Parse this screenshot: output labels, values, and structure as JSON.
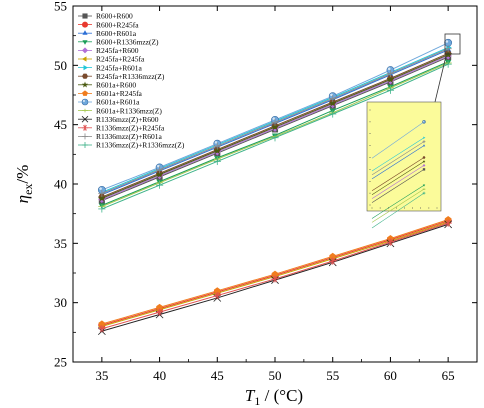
{
  "chart_data": {
    "type": "line",
    "x_label_var": "T",
    "x_label_sub": "1",
    "x_label_unit": " / (°C)",
    "y_label_var": "η",
    "y_label_sub": "ex",
    "y_label_unit": "/%",
    "xlim": [
      32.5,
      67.5
    ],
    "ylim": [
      25,
      55
    ],
    "x_ticks": [
      35,
      40,
      45,
      50,
      55,
      60,
      65
    ],
    "y_ticks": [
      25,
      30,
      35,
      40,
      45,
      50,
      55
    ],
    "x": [
      35,
      40,
      45,
      50,
      55,
      60,
      65
    ],
    "legend_position": "top-left",
    "inset_position": "right",
    "series": [
      {
        "name": "R600+R600",
        "marker": "square",
        "color": "#555555",
        "values": [
          38.6,
          40.6,
          42.6,
          44.6,
          46.6,
          48.6,
          50.7
        ]
      },
      {
        "name": "R600+R245fa",
        "marker": "circle",
        "color": "#e8392f",
        "values": [
          28.1,
          29.5,
          30.9,
          32.3,
          33.8,
          35.3,
          36.9
        ]
      },
      {
        "name": "R600+R601a",
        "marker": "triangle-up",
        "color": "#2c6fd6",
        "values": [
          39.1,
          41.1,
          43.1,
          45.1,
          47.1,
          49.2,
          51.3
        ]
      },
      {
        "name": "R600+R1336mzz(Z)",
        "marker": "triangle-down",
        "color": "#1b9e5a",
        "values": [
          38.2,
          40.2,
          42.2,
          44.1,
          46.2,
          48.2,
          50.3
        ]
      },
      {
        "name": "R245fa+R600",
        "marker": "diamond",
        "color": "#b06fd8",
        "values": [
          38.7,
          40.7,
          42.7,
          44.7,
          46.7,
          48.7,
          50.8
        ]
      },
      {
        "name": "R245fa+R245fa",
        "marker": "triangle-left",
        "color": "#c8a200",
        "values": [
          28.0,
          29.4,
          30.8,
          32.2,
          33.7,
          35.2,
          36.8
        ]
      },
      {
        "name": "R245fa+R601a",
        "marker": "triangle-right",
        "color": "#22c7d8",
        "values": [
          39.3,
          41.3,
          43.3,
          45.3,
          47.3,
          49.4,
          51.5
        ]
      },
      {
        "name": "R245fa+R1336mzz(Z)",
        "marker": "hexagon",
        "color": "#7a4a2c",
        "values": [
          38.9,
          40.9,
          42.9,
          44.9,
          46.9,
          48.9,
          51.0
        ]
      },
      {
        "name": "R601a+R600",
        "marker": "star",
        "color": "#4a5a10",
        "values": [
          38.8,
          40.8,
          42.8,
          44.8,
          46.8,
          48.8,
          50.9
        ]
      },
      {
        "name": "R601a+R245fa",
        "marker": "pentagon",
        "color": "#f07d1e",
        "values": [
          28.2,
          29.6,
          31.0,
          32.4,
          33.9,
          35.4,
          37.0
        ]
      },
      {
        "name": "R601a+R601a",
        "marker": "circle-sphere",
        "color": "#6fa8dc",
        "values": [
          39.5,
          41.4,
          43.4,
          45.4,
          47.4,
          49.6,
          51.9
        ]
      },
      {
        "name": "R601a+R1336mzz(Z)",
        "marker": "tick",
        "color": "#a5c850",
        "values": [
          38.1,
          40.1,
          42.1,
          44.0,
          46.0,
          48.1,
          50.2
        ]
      },
      {
        "name": "R1336mzz(Z)+R600",
        "marker": "x",
        "color": "#222222",
        "values": [
          27.6,
          29.0,
          30.4,
          31.9,
          33.4,
          35.0,
          36.6
        ]
      },
      {
        "name": "R1336mzz(Z)+R245fa",
        "marker": "asterisk",
        "color": "#e05050",
        "values": [
          27.8,
          29.2,
          30.6,
          32.0,
          33.5,
          35.1,
          36.7
        ]
      },
      {
        "name": "R1336mzz(Z)+R601a",
        "marker": "cross",
        "color": "#8a8a8a",
        "values": [
          39.2,
          41.2,
          43.2,
          45.2,
          47.2,
          49.3,
          51.4
        ]
      },
      {
        "name": "R1336mzz(Z)+R1336mzz(Z)",
        "marker": "plus",
        "color": "#3fb38a",
        "values": [
          37.9,
          39.9,
          41.9,
          43.9,
          45.9,
          47.9,
          50.1
        ]
      }
    ]
  }
}
